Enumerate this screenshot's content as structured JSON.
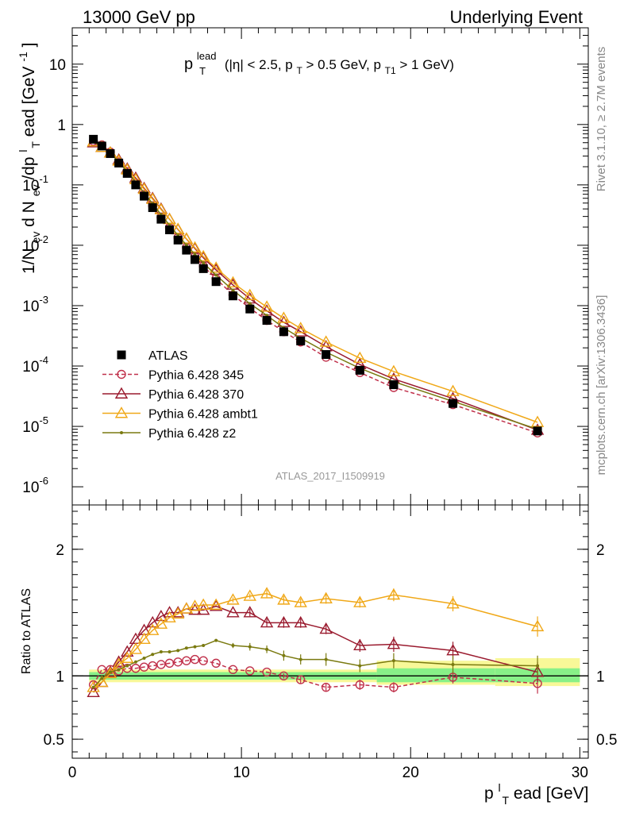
{
  "header": {
    "left": "13000 GeV pp",
    "right": "Underlying Event"
  },
  "side_labels": {
    "rivet": "Rivet 3.1.10, ≥ 2.7M events",
    "mcplots": "mcplots.cern.ch [arXiv:1306.3436]"
  },
  "analysis_id": "ATLAS_2017_I1509919",
  "colors": {
    "atlas": "#000000",
    "p345": "#c0304a",
    "p370": "#9a1a2e",
    "ambt1": "#f0a818",
    "z2": "#7a7a10",
    "band_inner": "#88f088",
    "band_outer": "#f8f898"
  },
  "chart_data": [
    {
      "type": "line",
      "panel": "main",
      "title": "p_T^lead (|η| < 2.5, p_T > 0.5 GeV, p_T1 > 1 GeV)",
      "title_parts": {
        "p": "p",
        "lead": "lead",
        "T": "T",
        "mid": " (|η| < 2.5, p",
        "cut1": " > 0.5 GeV, p",
        "T1": "T1",
        "cut2": " > 1 GeV)"
      },
      "ylabel": "1/N_ev d N_ev/dp_T^lead [GeV^-1]",
      "ylabel_parts": {
        "a": "1/N",
        "ev": "ev",
        "b": " d N",
        "c": "/dp",
        "T": "T",
        "l": "l",
        "d": "ead [GeV",
        "exp": "-1",
        "e": "]"
      },
      "yscale": "log",
      "ylim": [
        5e-07,
        40
      ],
      "xlim": [
        0,
        30.5
      ],
      "y_ticks": [
        {
          "mant": "10",
          "exp": "-6",
          "value": 1e-06
        },
        {
          "mant": "10",
          "exp": "-5",
          "value": 1e-05
        },
        {
          "mant": "10",
          "exp": "-4",
          "value": 0.0001
        },
        {
          "mant": "10",
          "exp": "-3",
          "value": 0.001
        },
        {
          "mant": "10",
          "exp": "-2",
          "value": 0.01
        },
        {
          "mant": "10",
          "exp": "-1",
          "value": 0.1
        },
        {
          "mant": "1",
          "exp": "",
          "value": 1
        },
        {
          "mant": "10",
          "exp": "",
          "value": 10
        }
      ],
      "x": [
        1.25,
        1.75,
        2.25,
        2.75,
        3.25,
        3.75,
        4.25,
        4.75,
        5.25,
        5.75,
        6.25,
        6.75,
        7.25,
        7.75,
        8.5,
        9.5,
        10.5,
        11.5,
        12.5,
        13.5,
        15,
        17,
        19,
        22.5,
        27.5
      ],
      "legend": {
        "placement": "middle-left"
      },
      "series": [
        {
          "name": "ATLAS",
          "marker": "square-filled",
          "color": "#000000",
          "values": [
            0.57,
            0.44,
            0.33,
            0.23,
            0.155,
            0.1,
            0.065,
            0.042,
            0.027,
            0.018,
            0.0122,
            0.0083,
            0.0058,
            0.0041,
            0.0025,
            0.00145,
            0.00088,
            0.00057,
            0.00037,
            0.00026,
            0.000155,
            8.5e-05,
            4.9e-05,
            2.4e-05,
            8.4e-06
          ]
        },
        {
          "name": "Pythia 6.428 345",
          "marker": "circle-open",
          "color": "#c0304a",
          "dashed": true,
          "values": [
            0.53,
            0.46,
            0.35,
            0.24,
            0.165,
            0.106,
            0.069,
            0.045,
            0.029,
            0.0195,
            0.0134,
            0.0092,
            0.0065,
            0.0045,
            0.0028,
            0.0015,
            0.00091,
            0.00057,
            0.00037,
            0.00025,
            0.00014,
            7.8e-05,
            4.4e-05,
            2.3e-05,
            7.8e-06
          ]
        },
        {
          "name": "Pythia 6.428 370",
          "marker": "triangle-open",
          "color": "#9a1a2e",
          "values": [
            0.5,
            0.42,
            0.34,
            0.26,
            0.185,
            0.13,
            0.088,
            0.06,
            0.04,
            0.027,
            0.0182,
            0.0127,
            0.0088,
            0.0062,
            0.0039,
            0.0022,
            0.0013,
            0.00082,
            0.00053,
            0.00037,
            0.00021,
            0.000106,
            6.1e-05,
            2.9e-05,
            8.7e-06
          ]
        },
        {
          "name": "Pythia 6.428 ambt1",
          "marker": "triangle-open",
          "color": "#f0a818",
          "values": [
            0.52,
            0.42,
            0.34,
            0.25,
            0.178,
            0.123,
            0.085,
            0.058,
            0.039,
            0.027,
            0.0185,
            0.0128,
            0.0091,
            0.0065,
            0.0042,
            0.0024,
            0.00148,
            0.00095,
            0.00062,
            0.00042,
            0.00025,
            0.000135,
            8.1e-05,
            3.8e-05,
            1.17e-05
          ]
        },
        {
          "name": "Pythia 6.428 z2",
          "marker": "dot",
          "color": "#7a7a10",
          "values": [
            0.52,
            0.43,
            0.34,
            0.24,
            0.168,
            0.111,
            0.074,
            0.049,
            0.032,
            0.0215,
            0.0146,
            0.0101,
            0.0071,
            0.0051,
            0.0032,
            0.0018,
            0.00108,
            0.00069,
            0.00043,
            0.00029,
            0.00017,
            9.2e-05,
            5.5e-05,
            2.6e-05,
            9e-06
          ]
        }
      ]
    },
    {
      "type": "line",
      "panel": "ratio",
      "ylabel": "Ratio to ATLAS",
      "xlabel": "p_T^lead [GeV]",
      "xlabel_parts": {
        "p": "p",
        "T": "T",
        "l": "l",
        "rest": "ead [GeV]"
      },
      "xlim": [
        0,
        30.5
      ],
      "ylim": [
        0.35,
        2.35
      ],
      "x_ticks": [
        {
          "label": "0",
          "value": 0
        },
        {
          "label": "10",
          "value": 10
        },
        {
          "label": "20",
          "value": 20
        },
        {
          "label": "30",
          "value": 30
        }
      ],
      "y_ticks": [
        {
          "label": "0.5",
          "value": 0.5
        },
        {
          "label": "1",
          "value": 1
        },
        {
          "label": "2",
          "value": 2
        }
      ],
      "x": [
        1.25,
        1.75,
        2.25,
        2.75,
        3.25,
        3.75,
        4.25,
        4.75,
        5.25,
        5.75,
        6.25,
        6.75,
        7.25,
        7.75,
        8.5,
        9.5,
        10.5,
        11.5,
        12.5,
        13.5,
        15,
        17,
        19,
        22.5,
        27.5
      ],
      "bands": [
        {
          "x": [
            1,
            18
          ],
          "inner": [
            0.97,
            1.03
          ],
          "outer": [
            0.95,
            1.05
          ]
        },
        {
          "x": [
            18,
            25
          ],
          "inner": [
            0.95,
            1.06
          ],
          "outer": [
            0.93,
            1.12
          ]
        },
        {
          "x": [
            25,
            30
          ],
          "inner": [
            0.95,
            1.06
          ],
          "outer": [
            0.92,
            1.14
          ]
        }
      ],
      "series": [
        {
          "name": "Pythia 6.428 345",
          "marker": "circle-open",
          "color": "#c0304a",
          "dashed": true,
          "values": [
            0.93,
            1.05,
            1.05,
            1.04,
            1.06,
            1.06,
            1.07,
            1.08,
            1.09,
            1.1,
            1.11,
            1.12,
            1.13,
            1.12,
            1.1,
            1.05,
            1.04,
            1.03,
            1.0,
            0.97,
            0.91,
            0.93,
            0.91,
            0.99,
            0.94
          ],
          "errors": [
            0,
            0,
            0,
            0,
            0,
            0,
            0,
            0,
            0,
            0,
            0,
            0,
            0,
            0,
            0,
            0,
            0,
            0,
            0.02,
            0.03,
            0.03,
            0.04,
            0.04,
            0.05,
            0.08
          ]
        },
        {
          "name": "Pythia 6.428 370",
          "marker": "triangle-open",
          "color": "#9a1a2e",
          "values": [
            0.87,
            0.95,
            1.03,
            1.11,
            1.19,
            1.29,
            1.36,
            1.42,
            1.47,
            1.5,
            1.5,
            1.53,
            1.52,
            1.52,
            1.55,
            1.5,
            1.5,
            1.42,
            1.42,
            1.42,
            1.37,
            1.24,
            1.25,
            1.2,
            1.03
          ],
          "errors": [
            0,
            0,
            0,
            0,
            0,
            0,
            0,
            0,
            0,
            0,
            0,
            0,
            0,
            0,
            0,
            0,
            0.03,
            0.03,
            0.04,
            0.04,
            0.04,
            0.05,
            0.06,
            0.07,
            0.08
          ]
        },
        {
          "name": "Pythia 6.428 ambt1",
          "marker": "triangle-open",
          "color": "#f0a818",
          "values": [
            0.91,
            0.95,
            1.02,
            1.09,
            1.14,
            1.21,
            1.29,
            1.36,
            1.41,
            1.46,
            1.49,
            1.53,
            1.55,
            1.56,
            1.56,
            1.6,
            1.63,
            1.65,
            1.6,
            1.58,
            1.61,
            1.58,
            1.64,
            1.57,
            1.39
          ],
          "errors": [
            0,
            0,
            0,
            0,
            0,
            0,
            0,
            0,
            0,
            0,
            0,
            0,
            0,
            0,
            0,
            0.02,
            0.02,
            0.03,
            0.03,
            0.03,
            0.04,
            0.04,
            0.05,
            0.06,
            0.08
          ]
        },
        {
          "name": "Pythia 6.428 z2",
          "marker": "dot",
          "color": "#7a7a10",
          "values": [
            0.91,
            0.98,
            1.03,
            1.05,
            1.08,
            1.11,
            1.14,
            1.17,
            1.19,
            1.19,
            1.2,
            1.22,
            1.23,
            1.24,
            1.28,
            1.24,
            1.23,
            1.21,
            1.16,
            1.13,
            1.13,
            1.08,
            1.12,
            1.09,
            1.08
          ],
          "errors": [
            0,
            0,
            0,
            0,
            0,
            0,
            0,
            0,
            0,
            0,
            0,
            0,
            0,
            0,
            0,
            0.02,
            0.03,
            0.03,
            0.04,
            0.04,
            0.05,
            0.05,
            0.06,
            0.07,
            0.08
          ]
        }
      ]
    }
  ]
}
